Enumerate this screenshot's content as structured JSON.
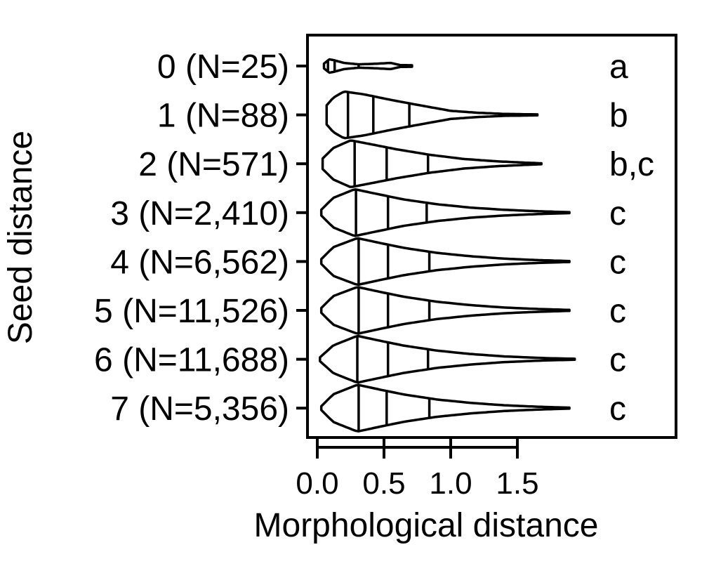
{
  "chart_data": {
    "type": "violin",
    "orientation": "horizontal",
    "xlabel": "Morphological distance",
    "ylabel": "Seed distance",
    "xlim": [
      -0.05,
      2.7
    ],
    "xticks": [
      "0.0",
      "0.5",
      "1.0",
      "1.5"
    ],
    "xtick_values": [
      0.0,
      0.5,
      1.0,
      1.5
    ],
    "categories": [
      "0 (N=25)",
      "1 (N=88)",
      "2 (N=571)",
      "3 (N=2,410)",
      "4 (N=6,562)",
      "5 (N=11,526)",
      "6 (N=11,688)",
      "7 (N=5,356)"
    ],
    "significance_letters": [
      "a",
      "b",
      "b,c",
      "c",
      "c",
      "c",
      "c",
      "c"
    ],
    "violins": [
      {
        "min": 0.05,
        "max": 0.71,
        "quartiles": [
          0.08,
          0.13,
          0.31
        ],
        "profile": [
          [
            0.05,
            0.1
          ],
          [
            0.09,
            0.28
          ],
          [
            0.12,
            0.25
          ],
          [
            0.2,
            0.13
          ],
          [
            0.31,
            0.07
          ],
          [
            0.42,
            0.09
          ],
          [
            0.55,
            0.13
          ],
          [
            0.62,
            0.04
          ],
          [
            0.71,
            0.03
          ]
        ]
      },
      {
        "min": 0.07,
        "max": 1.65,
        "quartiles": [
          0.23,
          0.42,
          0.69
        ],
        "profile": [
          [
            0.07,
            0.4
          ],
          [
            0.12,
            0.72
          ],
          [
            0.2,
            0.98
          ],
          [
            0.35,
            0.86
          ],
          [
            0.55,
            0.63
          ],
          [
            0.8,
            0.37
          ],
          [
            1.0,
            0.17
          ],
          [
            1.2,
            0.09
          ],
          [
            1.4,
            0.04
          ],
          [
            1.65,
            0.02
          ]
        ]
      },
      {
        "min": 0.04,
        "max": 1.68,
        "quartiles": [
          0.28,
          0.52,
          0.83
        ],
        "profile": [
          [
            0.04,
            0.22
          ],
          [
            0.12,
            0.66
          ],
          [
            0.25,
            0.98
          ],
          [
            0.4,
            0.82
          ],
          [
            0.6,
            0.6
          ],
          [
            0.85,
            0.37
          ],
          [
            1.1,
            0.2
          ],
          [
            1.35,
            0.1
          ],
          [
            1.55,
            0.05
          ],
          [
            1.68,
            0.02
          ]
        ]
      },
      {
        "min": 0.03,
        "max": 1.89,
        "quartiles": [
          0.29,
          0.53,
          0.82
        ],
        "profile": [
          [
            0.03,
            0.12
          ],
          [
            0.12,
            0.62
          ],
          [
            0.28,
            0.98
          ],
          [
            0.45,
            0.78
          ],
          [
            0.65,
            0.55
          ],
          [
            0.9,
            0.35
          ],
          [
            1.15,
            0.21
          ],
          [
            1.4,
            0.12
          ],
          [
            1.65,
            0.06
          ],
          [
            1.89,
            0.02
          ]
        ]
      },
      {
        "min": 0.03,
        "max": 1.89,
        "quartiles": [
          0.31,
          0.53,
          0.84
        ],
        "profile": [
          [
            0.03,
            0.1
          ],
          [
            0.12,
            0.6
          ],
          [
            0.3,
            0.98
          ],
          [
            0.45,
            0.8
          ],
          [
            0.65,
            0.57
          ],
          [
            0.9,
            0.36
          ],
          [
            1.15,
            0.22
          ],
          [
            1.4,
            0.12
          ],
          [
            1.65,
            0.06
          ],
          [
            1.89,
            0.02
          ]
        ]
      },
      {
        "min": 0.03,
        "max": 1.89,
        "quartiles": [
          0.31,
          0.53,
          0.84
        ],
        "profile": [
          [
            0.03,
            0.1
          ],
          [
            0.12,
            0.6
          ],
          [
            0.3,
            0.98
          ],
          [
            0.45,
            0.8
          ],
          [
            0.65,
            0.57
          ],
          [
            0.9,
            0.36
          ],
          [
            1.15,
            0.22
          ],
          [
            1.4,
            0.12
          ],
          [
            1.65,
            0.06
          ],
          [
            1.89,
            0.02
          ]
        ]
      },
      {
        "min": 0.02,
        "max": 1.93,
        "quartiles": [
          0.3,
          0.53,
          0.83
        ],
        "profile": [
          [
            0.02,
            0.08
          ],
          [
            0.12,
            0.58
          ],
          [
            0.3,
            0.98
          ],
          [
            0.45,
            0.8
          ],
          [
            0.65,
            0.57
          ],
          [
            0.9,
            0.36
          ],
          [
            1.15,
            0.22
          ],
          [
            1.4,
            0.12
          ],
          [
            1.7,
            0.05
          ],
          [
            1.93,
            0.02
          ]
        ]
      },
      {
        "min": 0.03,
        "max": 1.89,
        "quartiles": [
          0.31,
          0.52,
          0.84
        ],
        "profile": [
          [
            0.03,
            0.08
          ],
          [
            0.12,
            0.58
          ],
          [
            0.3,
            0.98
          ],
          [
            0.45,
            0.8
          ],
          [
            0.65,
            0.57
          ],
          [
            0.9,
            0.36
          ],
          [
            1.15,
            0.22
          ],
          [
            1.4,
            0.12
          ],
          [
            1.65,
            0.06
          ],
          [
            1.89,
            0.02
          ]
        ]
      }
    ]
  }
}
